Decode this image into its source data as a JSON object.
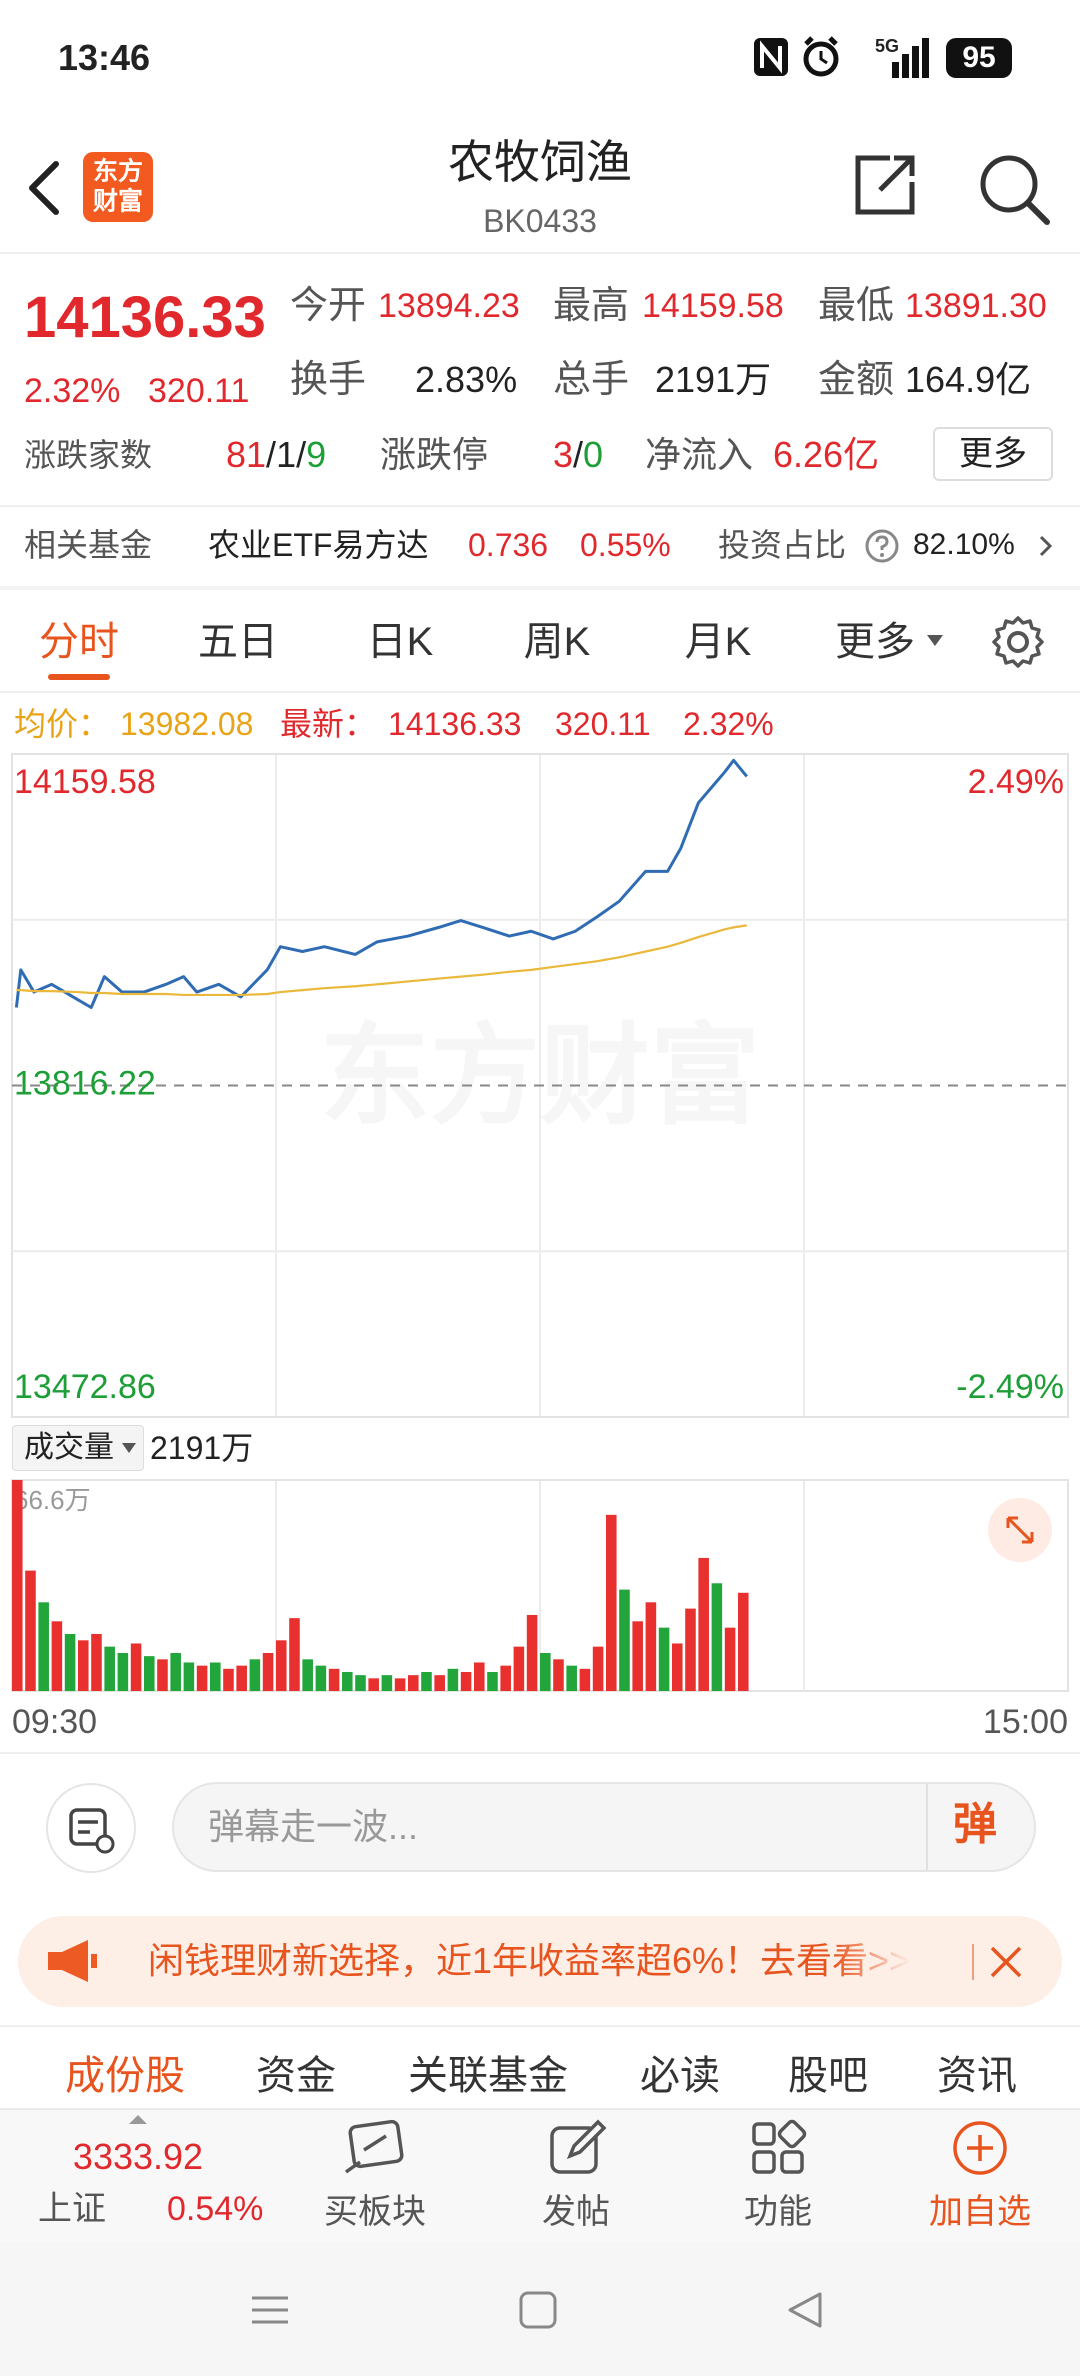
{
  "status_bar": {
    "time": "13:46",
    "network": "5G",
    "battery": "95"
  },
  "header": {
    "logo": [
      "东方",
      "财富"
    ],
    "title": "农牧饲渔",
    "code": "BK0433"
  },
  "quote": {
    "price": "14136.33",
    "change_pct": "2.32%",
    "change": "320.11",
    "stats": [
      {
        "label": "今开",
        "value": "13894.23"
      },
      {
        "label": "最高",
        "value": "14159.58"
      },
      {
        "label": "最低",
        "value": "13891.30"
      },
      {
        "label": "换手",
        "value": "2.83%"
      },
      {
        "label": "总手",
        "value": "2191万"
      },
      {
        "label": "金额",
        "value": "164.9亿"
      }
    ],
    "breadth": {
      "label": "涨跌家数",
      "up": "81",
      "flat": "1",
      "down": "9",
      "separator": "/"
    },
    "limit": {
      "label": "涨跌停",
      "up": "3",
      "down": "0"
    },
    "net_inflow": {
      "label": "净流入",
      "value": "6.26亿"
    },
    "more": "更多"
  },
  "fund": {
    "label": "相关基金",
    "name": "农业ETF易方达",
    "price": "0.736",
    "change_pct": "0.55%",
    "ratio_label": "投资占比",
    "ratio": "82.10%"
  },
  "tabs": {
    "items": [
      "分时",
      "五日",
      "日K",
      "周K",
      "月K",
      "更多"
    ],
    "active": 0
  },
  "chart_info": {
    "avg_label": "均价：",
    "avg": "13982.08",
    "latest_label": "最新：",
    "latest": "14136.33",
    "change": "320.11",
    "change_pct": "2.32%"
  },
  "watermark": "东方财富",
  "volume_header": {
    "label": "成交量",
    "total": "2191万"
  },
  "chart_data": [
    {
      "type": "line",
      "x": [
        1,
        2,
        5,
        9,
        15,
        18,
        21,
        25,
        30,
        35,
        39,
        42,
        47,
        52,
        58,
        61,
        66,
        71,
        78,
        83,
        90,
        97,
        102,
        107,
        113,
        118,
        123,
        128,
        133,
        138,
        144,
        149,
        152,
        156,
        159,
        162,
        164,
        167
      ],
      "xlim": [
        0,
        240
      ],
      "ylim": [
        13472.86,
        14159.58
      ],
      "yticks": [
        14159.58,
        13816.22,
        13472.86
      ],
      "y2lim": [
        -2.49,
        2.49
      ],
      "y2ticks": [
        {
          "value": 2.49,
          "label": "2.49%"
        },
        {
          "value": -2.49,
          "label": "-2.49%"
        }
      ],
      "series": [
        {
          "color": "#2f6cb3",
          "values": [
            13897,
            13936,
            13913,
            13921,
            13905,
            13897,
            13929,
            13913,
            13913,
            13921,
            13929,
            13913,
            13921,
            13908,
            13936,
            13960,
            13955,
            13960,
            13952,
            13965,
            13971,
            13980,
            13987,
            13980,
            13971,
            13976,
            13968,
            13976,
            13991,
            14007,
            14038,
            14038,
            14062,
            14109,
            14125,
            14141,
            14153,
            14136.33
          ]
        },
        {
          "color": "#eab83a",
          "values": [
            13915,
            13915,
            13914,
            13914,
            13913,
            13912,
            13912,
            13911,
            13911,
            13911,
            13910,
            13910,
            13910,
            13910,
            13911,
            13913,
            13915,
            13917,
            13919,
            13921,
            13924,
            13927,
            13929,
            13931,
            13934,
            13936,
            13939,
            13942,
            13945,
            13949,
            13955,
            13960,
            13964,
            13970,
            13974,
            13978,
            13980,
            13982.08
          ]
        }
      ]
    },
    {
      "type": "bar",
      "x": [
        0,
        3,
        6,
        9,
        12,
        15,
        18,
        21,
        24,
        27,
        30,
        33,
        36,
        39,
        42,
        45,
        48,
        51,
        54,
        57,
        60,
        63,
        66,
        69,
        72,
        75,
        78,
        81,
        84,
        87,
        90,
        93,
        96,
        99,
        102,
        105,
        108,
        111,
        114,
        117,
        120,
        123,
        126,
        129,
        132,
        135,
        138,
        141,
        144,
        147,
        150,
        153,
        156,
        159,
        162,
        165
      ],
      "xlim": [
        0,
        240
      ],
      "xticks": [
        {
          "value": 0,
          "label": "09:30"
        },
        {
          "value": 240,
          "label": "15:00"
        }
      ],
      "ylim": [
        0,
        66.6
      ],
      "yticks": [
        {
          "value": 66.6,
          "label": "66.6万"
        }
      ],
      "values": [
        66.6,
        38,
        28,
        22,
        18,
        16,
        18,
        14,
        12,
        15,
        11,
        10,
        12,
        9,
        8,
        9,
        7,
        8,
        10,
        12,
        16,
        23,
        10,
        8,
        7,
        6,
        5,
        4,
        5,
        4,
        5,
        6,
        5,
        7,
        6,
        9,
        6,
        8,
        14,
        24,
        12,
        10,
        8,
        7,
        14,
        55.6,
        32,
        22,
        28,
        20,
        15,
        26,
        42,
        34,
        20,
        31
      ],
      "colors": [
        "#e8302f",
        "#e8302f",
        "#22a53a",
        "#e8302f",
        "#22a53a",
        "#e8302f",
        "#e8302f",
        "#22a53a",
        "#22a53a",
        "#e8302f",
        "#22a53a",
        "#e8302f",
        "#22a53a",
        "#22a53a",
        "#e8302f",
        "#22a53a",
        "#e8302f",
        "#e8302f",
        "#22a53a",
        "#e8302f",
        "#e8302f",
        "#e8302f",
        "#22a53a",
        "#22a53a",
        "#e8302f",
        "#22a53a",
        "#22a53a",
        "#e8302f",
        "#22a53a",
        "#e8302f",
        "#e8302f",
        "#22a53a",
        "#e8302f",
        "#22a53a",
        "#e8302f",
        "#e8302f",
        "#22a53a",
        "#e8302f",
        "#e8302f",
        "#e8302f",
        "#22a53a",
        "#e8302f",
        "#22a53a",
        "#e8302f",
        "#e8302f",
        "#e8302f",
        "#22a53a",
        "#e8302f",
        "#e8302f",
        "#22a53a",
        "#e8302f",
        "#e8302f",
        "#e8302f",
        "#22a53a",
        "#e8302f",
        "#e8302f"
      ]
    }
  ],
  "comment": {
    "placeholder": "弹幕走一波...",
    "button": "弹"
  },
  "banner": {
    "text": "闲钱理财新选择，近1年收益率超6%！去看看>>"
  },
  "bottom_tabs": {
    "items": [
      "成份股",
      "资金",
      "关联基金",
      "必读",
      "股吧",
      "资讯"
    ],
    "active": 0
  },
  "toolbar": {
    "index_value": "3333.92",
    "index_name": "上证",
    "index_change": "0.54%",
    "buttons": [
      "买板块",
      "发帖",
      "功能",
      "加自选"
    ]
  }
}
